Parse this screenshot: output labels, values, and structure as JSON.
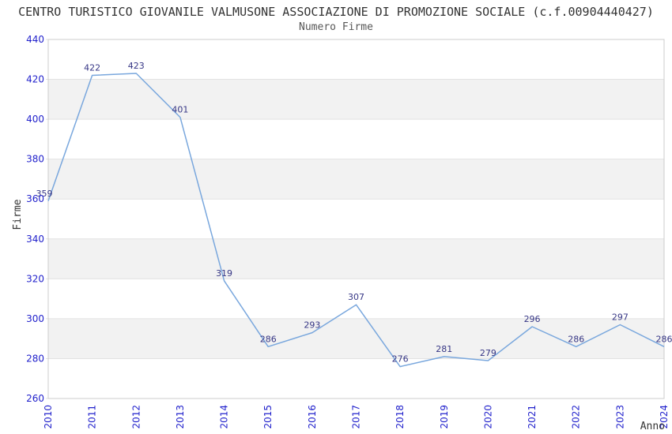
{
  "chart_data": {
    "type": "line",
    "title": "CENTRO TURISTICO GIOVANILE VALMUSONE ASSOCIAZIONE DI PROMOZIONE SOCIALE (c.f.00904440427)",
    "subtitle": "Numero Firme",
    "xlabel": "Anno",
    "ylabel": "Firme",
    "categories": [
      "2010",
      "2011",
      "2012",
      "2013",
      "2014",
      "2015",
      "2016",
      "2017",
      "2018",
      "2019",
      "2020",
      "2021",
      "2022",
      "2023",
      "2024"
    ],
    "values": [
      359,
      422,
      423,
      401,
      319,
      286,
      293,
      307,
      276,
      281,
      279,
      296,
      286,
      297,
      286
    ],
    "ylim": [
      260,
      440
    ],
    "ytick_step": 20,
    "yticks": [
      260,
      280,
      300,
      320,
      340,
      360,
      380,
      400,
      420,
      440
    ],
    "grid": true,
    "alternating_bands": true,
    "legend_position": "none",
    "colors": {
      "line": "#79a7dd",
      "tick_label": "#2222cc",
      "data_label": "#363685",
      "band": "#f2f2f2",
      "gridline": "#e2e2e2",
      "plot_border": "#cccccc",
      "title": "#333333",
      "subtitle": "#575757",
      "axis_label": "#333333",
      "background": "#ffffff"
    }
  }
}
